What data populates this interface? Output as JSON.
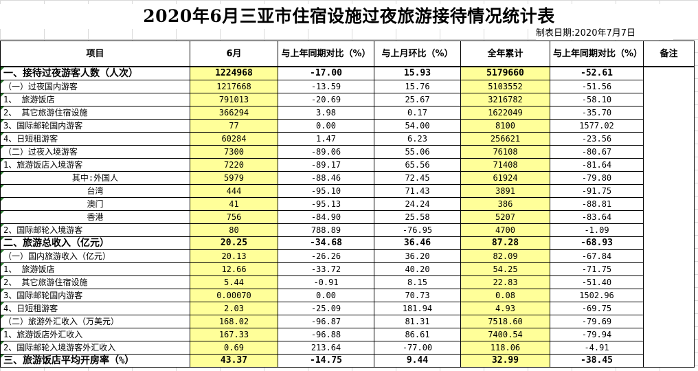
{
  "title": "2020年6月三亚市住宿设施过夜旅游接待情况统计表",
  "date_label": "制表日期:2020年7月7日",
  "headers": [
    "项目",
    "6月",
    "与上年同期对比（%）",
    "与上月环比（%）",
    "全年累计",
    "与上年同期对比（%）",
    "备注"
  ],
  "rows": [
    {
      "label": "一、接待过夜游客人数（人次）",
      "style": "bold",
      "indent": "",
      "v": [
        "1224968",
        "-17.00",
        "15.93",
        "5179660",
        "-52.61"
      ]
    },
    {
      "label": "（一）过夜国内游客",
      "style": "",
      "indent": "lv1",
      "v": [
        "1217668",
        "-13.59",
        "15.76",
        "5103552",
        "-51.56"
      ]
    },
    {
      "label": "1、 旅游饭店",
      "style": "",
      "indent": "lv2",
      "v": [
        "791013",
        "-20.69",
        "25.67",
        "3216782",
        "-58.10"
      ]
    },
    {
      "label": "2、 其它旅游住宿设施",
      "style": "",
      "indent": "lv2",
      "v": [
        "366294",
        "3.98",
        "0.17",
        "1622049",
        "-35.70"
      ]
    },
    {
      "label": "3、国际邮轮国内游客",
      "style": "",
      "indent": "lv2",
      "v": [
        "77",
        "0.00",
        "54.00",
        "8100",
        "1577.02"
      ]
    },
    {
      "label": "4、日短租游客",
      "style": "",
      "indent": "lv2",
      "v": [
        "60284",
        "1.47",
        "6.23",
        "256621",
        "-23.56"
      ]
    },
    {
      "label": "（二）过夜入境游客",
      "style": "",
      "indent": "lv1",
      "v": [
        "7300",
        "-89.06",
        "55.06",
        "76108",
        "-80.67"
      ]
    },
    {
      "label": "1、旅游饭店入境游客",
      "style": "",
      "indent": "lv2",
      "v": [
        "7220",
        "-89.17",
        "65.56",
        "71408",
        "-81.64"
      ]
    },
    {
      "label": "其中:外国人",
      "style": "",
      "indent": "center",
      "v": [
        "5979",
        "-88.46",
        "72.45",
        "61924",
        "-79.80"
      ]
    },
    {
      "label": "台湾",
      "style": "",
      "indent": "center",
      "v": [
        "444",
        "-95.10",
        "71.43",
        "3891",
        "-91.75"
      ]
    },
    {
      "label": "澳门",
      "style": "",
      "indent": "center",
      "v": [
        "41",
        "-95.13",
        "24.24",
        "386",
        "-88.81"
      ]
    },
    {
      "label": "香港",
      "style": "",
      "indent": "center",
      "v": [
        "756",
        "-84.90",
        "25.58",
        "5207",
        "-83.64"
      ]
    },
    {
      "label": "2、国际邮轮入境游客",
      "style": "",
      "indent": "lv2",
      "v": [
        "80",
        "788.89",
        "-76.95",
        "4700",
        "-1.09"
      ]
    },
    {
      "label": "二、旅游总收入（亿元）",
      "style": "bold",
      "indent": "",
      "v": [
        "20.25",
        "-34.68",
        "36.46",
        "87.28",
        "-68.93"
      ]
    },
    {
      "label": "（一）国内旅游收入（亿元）",
      "style": "",
      "indent": "lv1",
      "v": [
        "20.13",
        "-26.26",
        "36.20",
        "82.09",
        "-67.84"
      ]
    },
    {
      "label": "1、 旅游饭店",
      "style": "",
      "indent": "lv2",
      "v": [
        "12.66",
        "-33.72",
        "40.20",
        "54.25",
        "-71.75"
      ]
    },
    {
      "label": "2、 其它旅游住宿设施",
      "style": "",
      "indent": "lv2",
      "v": [
        "5.44",
        "-0.91",
        "8.15",
        "22.83",
        "-51.40"
      ]
    },
    {
      "label": "3、国际邮轮国内游客",
      "style": "",
      "indent": "lv2",
      "v": [
        "0.00070",
        "0.00",
        "70.73",
        "0.08",
        "1502.96"
      ]
    },
    {
      "label": "4、日短租游客",
      "style": "",
      "indent": "lv2",
      "v": [
        "2.03",
        "-25.09",
        "181.94",
        "4.93",
        "-69.75"
      ]
    },
    {
      "label": "（二）旅游外汇收入（万美元）",
      "style": "",
      "indent": "lv1",
      "v": [
        "168.02",
        "-96.87",
        "81.31",
        "7518.60",
        "-79.69"
      ]
    },
    {
      "label": "1、旅游饭店外汇收入",
      "style": "",
      "indent": "lv2",
      "v": [
        "167.33",
        "-96.88",
        "86.61",
        "7400.54",
        "-79.94"
      ]
    },
    {
      "label": "2、国际邮轮入境游客外汇收入",
      "style": "",
      "indent": "lv2",
      "v": [
        "0.69",
        "213.64",
        "-77.00",
        "118.06",
        "-4.91"
      ]
    },
    {
      "label": "三、旅游饭店平均开房率（%）",
      "style": "bold",
      "indent": "",
      "v": [
        "43.37",
        "-14.75",
        "9.44",
        "32.99",
        "-38.45"
      ]
    }
  ]
}
